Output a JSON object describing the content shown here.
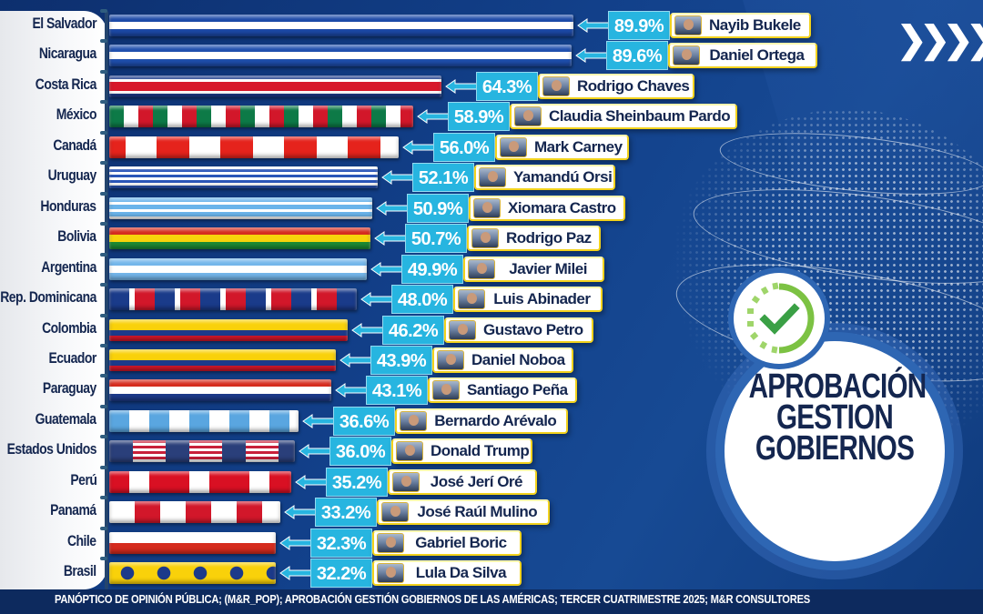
{
  "title": {
    "line1": "APROBACIÓN",
    "line2": "GESTION",
    "line3": "GOBIERNOS"
  },
  "decor": {
    "chevrons": "❯❯❯❯❯",
    "check_icon": "check-circle-icon",
    "globe_icon": "globe-icon"
  },
  "footer": {
    "text": "PANÓPTICO DE OPINIÓN PÚBLICA; (M&R_POP); APROBACIÓN GESTIÓN GOBIERNOS DE LAS AMÉRICAS; TERCER CUATRIMESTRE 2025; M&R CONSULTORES"
  },
  "colors": {
    "background": "#12408a",
    "pct_box": "#27b5e0",
    "name_text": "#14264f",
    "name_border": "#f2d21c",
    "footer_bg": "#0d2a5e"
  },
  "rows": [
    {
      "country": "El Salvador",
      "pct": "89.9%",
      "value": 89.9,
      "leader": "Nayib Bukele"
    },
    {
      "country": "Nicaragua",
      "pct": "89.6%",
      "value": 89.6,
      "leader": "Daniel Ortega"
    },
    {
      "country": "Costa Rica",
      "pct": "64.3%",
      "value": 64.3,
      "leader": "Rodrigo Chaves"
    },
    {
      "country": "México",
      "pct": "58.9%",
      "value": 58.9,
      "leader": "Claudia Sheinbaum Pardo"
    },
    {
      "country": "Canadá",
      "pct": "56.0%",
      "value": 56.0,
      "leader": "Mark Carney"
    },
    {
      "country": "Uruguay",
      "pct": "52.1%",
      "value": 52.1,
      "leader": "Yamandú Orsi"
    },
    {
      "country": "Honduras",
      "pct": "50.9%",
      "value": 50.9,
      "leader": "Xiomara Castro"
    },
    {
      "country": "Bolivia",
      "pct": "50.7%",
      "value": 50.7,
      "leader": "Rodrigo Paz"
    },
    {
      "country": "Argentina",
      "pct": "49.9%",
      "value": 49.9,
      "leader": "Javier Milei"
    },
    {
      "country": "Rep. Dominicana",
      "pct": "48.0%",
      "value": 48.0,
      "leader": "Luis Abinader"
    },
    {
      "country": "Colombia",
      "pct": "46.2%",
      "value": 46.2,
      "leader": "Gustavo Petro"
    },
    {
      "country": "Ecuador",
      "pct": "43.9%",
      "value": 43.9,
      "leader": "Daniel Noboa"
    },
    {
      "country": "Paraguay",
      "pct": "43.1%",
      "value": 43.1,
      "leader": "Santiago Peña"
    },
    {
      "country": "Guatemala",
      "pct": "36.6%",
      "value": 36.6,
      "leader": "Bernardo Arévalo"
    },
    {
      "country": "Estados Unidos",
      "pct": "36.0%",
      "value": 36.0,
      "leader": "Donald Trump"
    },
    {
      "country": "Perú",
      "pct": "35.2%",
      "value": 35.2,
      "leader": "José Jerí Oré"
    },
    {
      "country": "Panamá",
      "pct": "33.2%",
      "value": 33.2,
      "leader": "José Raúl Mulino"
    },
    {
      "country": "Chile",
      "pct": "32.3%",
      "value": 32.3,
      "leader": "Gabriel Boric"
    },
    {
      "country": "Brasil",
      "pct": "32.2%",
      "value": 32.2,
      "leader": "Lula Da Silva"
    }
  ],
  "chart_data": {
    "type": "bar",
    "orientation": "horizontal",
    "title": "APROBACIÓN GESTION GOBIERNOS",
    "subtitle": "PANÓPTICO DE OPINIÓN PÚBLICA; (M&R_POP); APROBACIÓN GESTIÓN GOBIERNOS DE LAS AMÉRICAS; TERCER CUATRIMESTRE 2025; M&R CONSULTORES",
    "xlabel": "",
    "ylabel": "",
    "categories": [
      "El Salvador",
      "Nicaragua",
      "Costa Rica",
      "México",
      "Canadá",
      "Uruguay",
      "Honduras",
      "Bolivia",
      "Argentina",
      "Rep. Dominicana",
      "Colombia",
      "Ecuador",
      "Paraguay",
      "Guatemala",
      "Estados Unidos",
      "Perú",
      "Panamá",
      "Chile",
      "Brasil"
    ],
    "values": [
      89.9,
      89.6,
      64.3,
      58.9,
      56.0,
      52.1,
      50.9,
      50.7,
      49.9,
      48.0,
      46.2,
      43.9,
      43.1,
      36.6,
      36.0,
      35.2,
      33.2,
      32.3,
      32.2
    ],
    "annotations": [
      "Nayib Bukele",
      "Daniel Ortega",
      "Rodrigo Chaves",
      "Claudia Sheinbaum Pardo",
      "Mark Carney",
      "Yamandú Orsi",
      "Xiomara Castro",
      "Rodrigo Paz",
      "Javier Milei",
      "Luis Abinader",
      "Gustavo Petro",
      "Daniel Noboa",
      "Santiago Peña",
      "Bernardo Arévalo",
      "Donald Trump",
      "José Jerí Oré",
      "José Raúl Mulino",
      "Gabriel Boric",
      "Lula Da Silva"
    ],
    "unit": "%",
    "grid": false,
    "legend": null,
    "xlim": [
      0,
      100
    ]
  }
}
